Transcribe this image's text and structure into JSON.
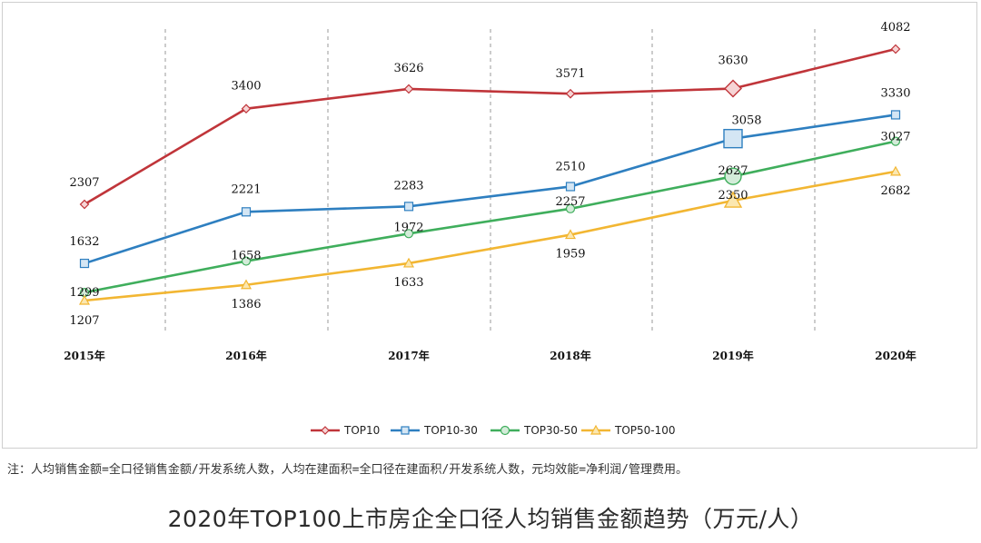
{
  "chart_data": {
    "type": "line",
    "title": "2020年TOP100上市房企全口径人均销售金额趋势（万元/人）",
    "note": "注：人均销售金额=全口径销售金额/开发系统人数，人均在建面积=全口径在建面积/开发系统人数，元均效能=净利润/管理费用。",
    "categories": [
      "2015年",
      "2016年",
      "2017年",
      "2018年",
      "2019年",
      "2020年"
    ],
    "ylim": [
      1000,
      4300
    ],
    "grid": "vertical dashed",
    "legend_position": "bottom-center",
    "highlight_index": 4,
    "series": [
      {
        "name": "TOP10",
        "values": [
          2307,
          3400,
          3626,
          3571,
          3630,
          4082
        ],
        "color": "#c0353a",
        "marker": "diamond",
        "label_text": [
          "2307",
          "3400",
          "3626",
          "3571",
          "3630",
          "4082"
        ]
      },
      {
        "name": "TOP10-30",
        "values": [
          1632,
          2221,
          2283,
          2510,
          3058,
          3330
        ],
        "color": "#2e7fc0",
        "marker": "square",
        "label_text": [
          "1632",
          "2221",
          "2283",
          "2510",
          "3058",
          "3330"
        ]
      },
      {
        "name": "TOP30-50",
        "values": [
          1299,
          1658,
          1972,
          2257,
          2627,
          3027
        ],
        "color": "#3fae5c",
        "marker": "circle",
        "label_text": [
          "1299",
          "1658",
          "1972",
          "2257",
          "2627",
          "3027"
        ]
      },
      {
        "name": "TOP50-100",
        "values": [
          1207,
          1386,
          1633,
          1959,
          2350,
          2682
        ],
        "color": "#f2b632",
        "marker": "triangle",
        "label_text": [
          "1207",
          "1386",
          "1633",
          "1959",
          "2350",
          "2682"
        ]
      }
    ]
  }
}
